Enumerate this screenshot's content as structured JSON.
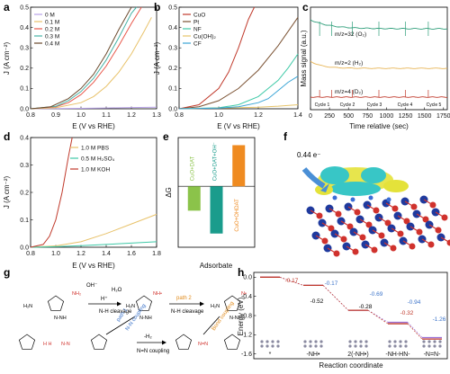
{
  "panels": {
    "a": {
      "label": "a",
      "xlabel": "E (V vs RHE)",
      "ylabel": "J (A cm⁻²)",
      "xticks": [
        "0.8",
        "0.9",
        "1.0",
        "1.1",
        "1.2",
        "1.3"
      ],
      "yticks": [
        "0.0",
        "0.1",
        "0.2",
        "0.3",
        "0.4",
        "0.5"
      ],
      "legend": [
        "0   M",
        "0.1 M",
        "0.2 M",
        "0.3 M",
        "0.4 M"
      ],
      "colors": [
        "#b8a2e8",
        "#e8c26a",
        "#e8574a",
        "#46b3a6",
        "#6b4a2d"
      ]
    },
    "b": {
      "label": "b",
      "xlabel": "E (V vs RHE)",
      "ylabel": "J (A cm⁻²)",
      "xticks": [
        "0.8",
        "1.0",
        "1.2",
        "1.4"
      ],
      "yticks": [
        "0.0",
        "0.1",
        "0.2",
        "0.3",
        "0.4",
        "0.5"
      ],
      "legend": [
        "CuO",
        "Pt",
        "NF",
        "Cu(OH)₂",
        "CF"
      ],
      "colors": [
        "#c0392b",
        "#7b5233",
        "#3ec9a7",
        "#e6c46a",
        "#3ba5d6"
      ]
    },
    "c": {
      "label": "c",
      "xlabel": "Time relative (sec)",
      "ylabel": "Mass signal (a.u.)",
      "xticks": [
        "0",
        "250",
        "500",
        "750",
        "1000",
        "1250",
        "1500",
        "1750"
      ],
      "series_labels": [
        "m/z=32 (O₂)",
        "m/z=2 (H₂)",
        "m/z=4 (D₂)"
      ],
      "colors": [
        "#2e9e7a",
        "#e7b455",
        "#c0392b"
      ],
      "cycles": [
        "Cycle 1",
        "Cycle 2",
        "Cycle 3",
        "Cycle 4",
        "Cycle 5"
      ]
    },
    "d": {
      "label": "d",
      "xlabel": "E (V vs RHE)",
      "ylabel": "J (A cm⁻²)",
      "xticks": [
        "0.8",
        "1.0",
        "1.2",
        "1.4",
        "1.6",
        "1.8"
      ],
      "yticks": [
        "0.0",
        "0.1",
        "0.2",
        "0.3",
        "0.4"
      ],
      "legend": [
        "1.0 M PBS",
        "0.5 M H₂SO₄",
        "1.0 M KOH"
      ],
      "colors": [
        "#e8c26a",
        "#3ec9a7",
        "#c0392b"
      ]
    },
    "e": {
      "label": "e",
      "xlabel": "Adsorbate",
      "ylabel": "ΔG",
      "bar_labels": [
        "CuO+DAT",
        "CuO+DAT+OH⁻",
        "CuO+OHDAT"
      ],
      "colors": [
        "#8bc34a",
        "#1a9c8c",
        "#ef8b21"
      ]
    },
    "f": {
      "label": "f",
      "electron_text": "0.44 e⁻"
    },
    "g": {
      "label": "g",
      "texts": [
        "OH⁻",
        "H⁺",
        "H₂O",
        "N-H cleavage",
        "path 2",
        "N-H cleavage",
        "path 1",
        "N-N coupling",
        "Bond coupling",
        "-H₂",
        "N=N coupling"
      ]
    },
    "h": {
      "label": "h",
      "xlabel": "Reaction coordinate",
      "ylabel": "Energy (eV)",
      "yticks": [
        "0.0",
        "-0.4",
        "-0.8",
        "-1.2",
        "-1.6"
      ],
      "xcat": [
        "*",
        "-NH•",
        "2(-NH•)",
        "-NH-HN-",
        "-N=N-"
      ],
      "values_purple": [
        "-0.17",
        "-0.69",
        "-0.94",
        "-1.26"
      ],
      "values_red": [
        "-0.17",
        "-0.52",
        "-0.28",
        "-0.32"
      ]
    }
  },
  "chart_data": [
    {
      "panel": "a",
      "type": "line",
      "xlabel": "E (V vs RHE)",
      "ylabel": "J (A cm⁻²)",
      "xlim": [
        0.8,
        1.3
      ],
      "ylim": [
        0,
        0.5
      ],
      "series": [
        {
          "name": "0   M",
          "x": [
            0.8,
            1.0,
            1.1,
            1.2,
            1.3
          ],
          "y": [
            0,
            0.002,
            0.004,
            0.006,
            0.008
          ]
        },
        {
          "name": "0.1 M",
          "x": [
            0.8,
            0.9,
            1.0,
            1.05,
            1.1,
            1.15,
            1.2,
            1.25,
            1.28
          ],
          "y": [
            0,
            0.005,
            0.03,
            0.06,
            0.11,
            0.18,
            0.27,
            0.38,
            0.45
          ]
        },
        {
          "name": "0.2 M",
          "x": [
            0.8,
            0.9,
            0.95,
            1.0,
            1.05,
            1.1,
            1.15,
            1.2,
            1.24
          ],
          "y": [
            0,
            0.01,
            0.03,
            0.07,
            0.13,
            0.21,
            0.31,
            0.42,
            0.5
          ]
        },
        {
          "name": "0.3 M",
          "x": [
            0.8,
            0.9,
            0.95,
            1.0,
            1.05,
            1.1,
            1.15,
            1.2,
            1.22
          ],
          "y": [
            0,
            0.012,
            0.04,
            0.085,
            0.15,
            0.24,
            0.35,
            0.47,
            0.5
          ]
        },
        {
          "name": "0.4 M",
          "x": [
            0.8,
            0.88,
            0.95,
            1.0,
            1.05,
            1.1,
            1.15,
            1.2
          ],
          "y": [
            0,
            0.01,
            0.05,
            0.1,
            0.17,
            0.27,
            0.39,
            0.5
          ]
        }
      ]
    },
    {
      "panel": "b",
      "type": "line",
      "xlabel": "E (V vs RHE)",
      "ylabel": "J (A cm⁻²)",
      "xlim": [
        0.8,
        1.4
      ],
      "ylim": [
        0,
        0.5
      ],
      "series": [
        {
          "name": "CuO",
          "x": [
            0.8,
            0.9,
            1.0,
            1.05,
            1.1,
            1.15,
            1.18
          ],
          "y": [
            0,
            0.02,
            0.1,
            0.18,
            0.3,
            0.44,
            0.5
          ]
        },
        {
          "name": "Pt",
          "x": [
            0.8,
            0.9,
            1.0,
            1.1,
            1.2,
            1.3,
            1.4
          ],
          "y": [
            0,
            0.01,
            0.04,
            0.1,
            0.19,
            0.31,
            0.45
          ]
        },
        {
          "name": "NF",
          "x": [
            0.8,
            1.0,
            1.1,
            1.2,
            1.25,
            1.3,
            1.35,
            1.4
          ],
          "y": [
            0,
            0.005,
            0.02,
            0.06,
            0.1,
            0.14,
            0.2,
            0.27
          ]
        },
        {
          "name": "Cu(OH)₂",
          "x": [
            0.8,
            1.0,
            1.2,
            1.3,
            1.4
          ],
          "y": [
            0,
            0.003,
            0.008,
            0.013,
            0.02
          ]
        },
        {
          "name": "CF",
          "x": [
            0.8,
            1.0,
            1.1,
            1.2,
            1.25,
            1.3,
            1.35,
            1.4
          ],
          "y": [
            0,
            0.003,
            0.01,
            0.03,
            0.05,
            0.09,
            0.13,
            0.16
          ]
        }
      ]
    },
    {
      "panel": "c",
      "type": "line",
      "xlabel": "Time relative (sec)",
      "ylabel": "Mass signal (a.u.)",
      "xlim": [
        0,
        1800
      ],
      "series": [
        {
          "name": "m/z=32 (O₂)",
          "x": [
            0,
            100,
            250,
            500,
            750,
            1000,
            1250,
            1500,
            1750
          ],
          "y": [
            3.0,
            2.75,
            2.6,
            2.5,
            2.45,
            2.4,
            2.37,
            2.35,
            2.33
          ]
        },
        {
          "name": "m/z=2 (H₂)",
          "x": [
            0,
            250,
            500,
            750,
            1000,
            1250,
            1500,
            1750
          ],
          "y": [
            1.6,
            1.58,
            1.56,
            1.55,
            1.54,
            1.53,
            1.52,
            1.52
          ]
        },
        {
          "name": "m/z=4 (D₂)",
          "x": [
            0,
            250,
            500,
            750,
            1000,
            1250,
            1500,
            1750
          ],
          "y": [
            0.4,
            0.4,
            0.4,
            0.4,
            0.4,
            0.4,
            0.4,
            0.4
          ]
        }
      ]
    },
    {
      "panel": "d",
      "type": "line",
      "xlabel": "E (V vs RHE)",
      "ylabel": "J (A cm⁻²)",
      "xlim": [
        0.8,
        1.8
      ],
      "ylim": [
        0,
        0.4
      ],
      "series": [
        {
          "name": "1.0 M PBS",
          "x": [
            0.8,
            1.0,
            1.2,
            1.4,
            1.6,
            1.8
          ],
          "y": [
            0,
            0.005,
            0.02,
            0.05,
            0.085,
            0.12
          ]
        },
        {
          "name": "0.5 M H₂SO₄",
          "x": [
            0.8,
            1.0,
            1.2,
            1.4,
            1.6,
            1.8
          ],
          "y": [
            0,
            0.002,
            0.006,
            0.01,
            0.015,
            0.02
          ]
        },
        {
          "name": "1.0 M KOH",
          "x": [
            0.8,
            0.9,
            0.95,
            1.0,
            1.05,
            1.1,
            1.13
          ],
          "y": [
            0,
            0.01,
            0.04,
            0.1,
            0.2,
            0.33,
            0.4
          ]
        }
      ]
    },
    {
      "panel": "e",
      "type": "bar",
      "xlabel": "Adsorbate",
      "ylabel": "ΔG",
      "categories": [
        "CuO+DAT",
        "CuO+DAT+OH⁻",
        "CuO+OHDAT"
      ],
      "values": [
        -1.6,
        -3.1,
        2.7
      ]
    },
    {
      "panel": "h",
      "type": "line",
      "xlabel": "Reaction coordinate",
      "ylabel": "Energy (eV)",
      "categories": [
        "*",
        "-NH•",
        "2(-NH•)",
        "-NH-HN-",
        "-N=N-"
      ],
      "ylim": [
        -1.7,
        0.1
      ],
      "series": [
        {
          "x": [
            0,
            1,
            2,
            3,
            4
          ],
          "y": [
            0,
            -0.17,
            -0.69,
            -0.94,
            -1.26
          ]
        },
        {
          "x": [
            0,
            1,
            2,
            3,
            4
          ],
          "y": [
            0,
            -0.17,
            -0.69,
            -0.97,
            -1.29
          ]
        }
      ]
    }
  ]
}
